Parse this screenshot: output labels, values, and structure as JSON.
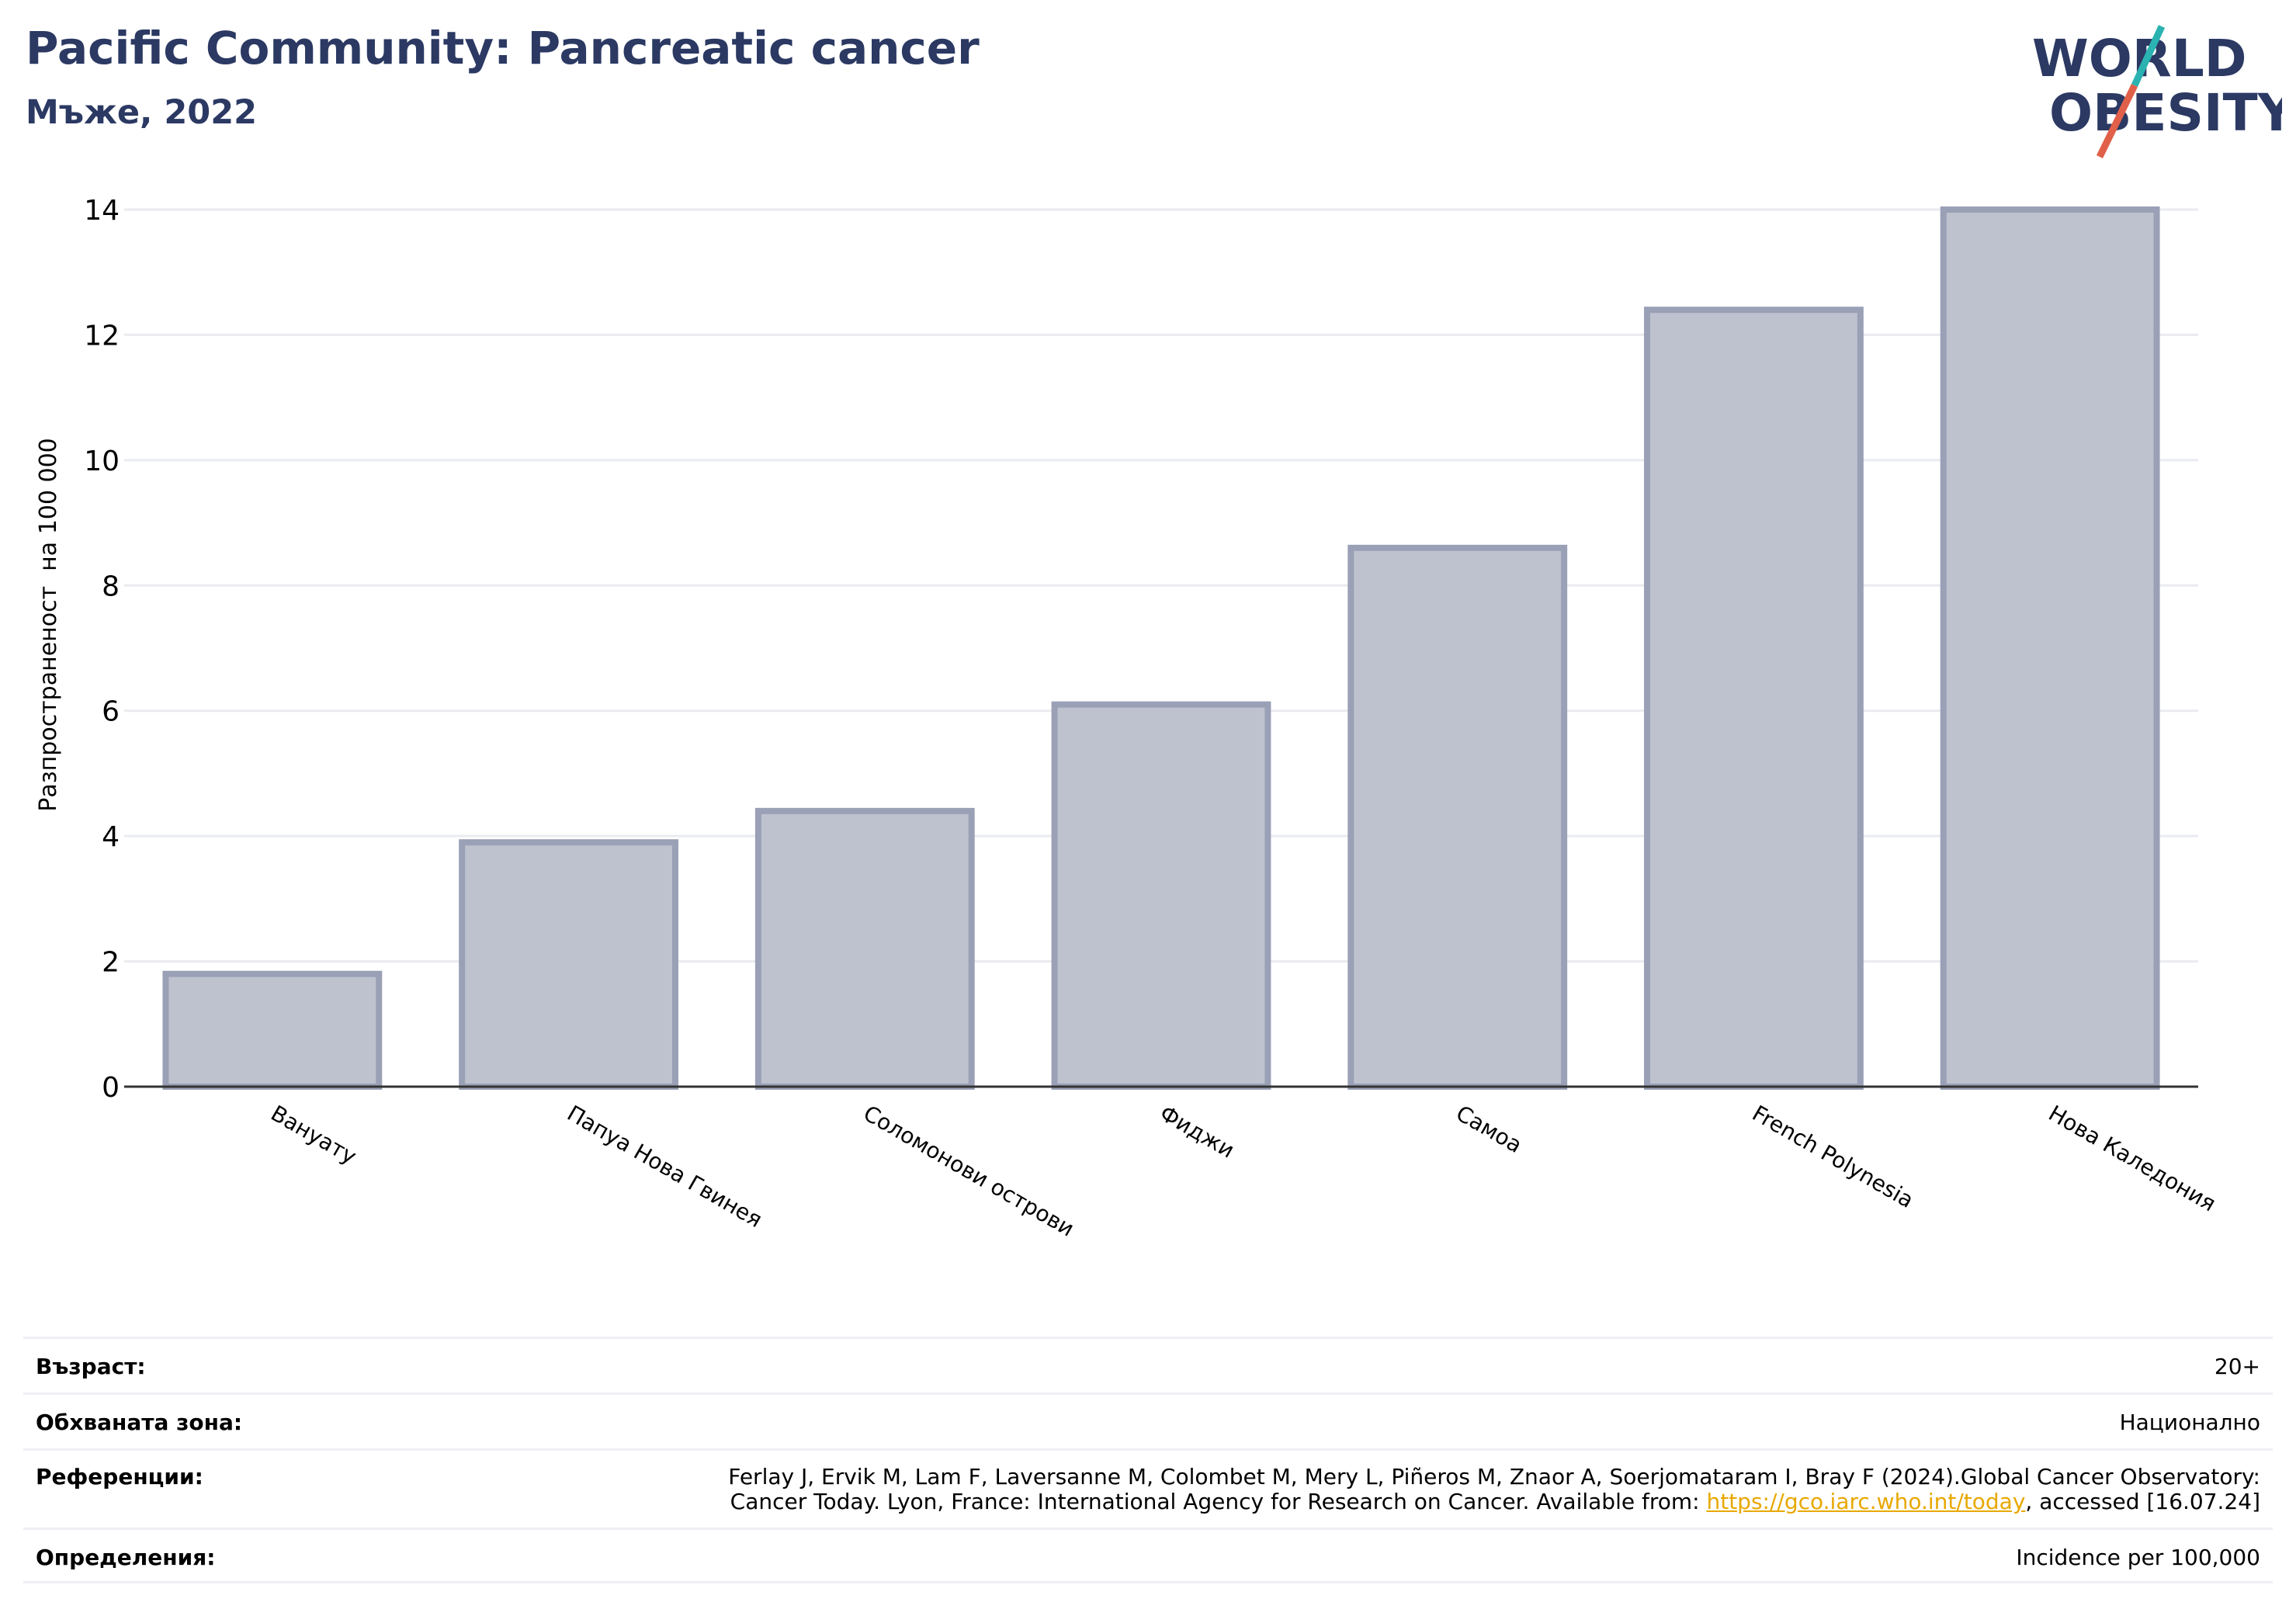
{
  "header": {
    "title": "Pacific Community: Pancreatic cancer",
    "subtitle": "Мъже, 2022"
  },
  "logo": {
    "line1": "WORLD",
    "line2": "OBESITY",
    "accent_teal": "#2bb3b1",
    "accent_red": "#e0604a"
  },
  "colors": {
    "bar_fill": "#bec2ce",
    "bar_stroke": "#9aa0b6",
    "title": "#2b3963",
    "grid": "#e9ebf0"
  },
  "chart_data": {
    "type": "bar",
    "categories": [
      "Вануату",
      "Папуа Нова Гвинея",
      "Соломонови острови",
      "Фиджи",
      "Самоа",
      "French Polynesia",
      "Нова Каледония"
    ],
    "values": [
      1.8,
      3.9,
      4.4,
      6.1,
      8.6,
      12.4,
      14.0
    ],
    "ylabel": "Разпространеност  на 100 000",
    "ylim": [
      0,
      14
    ],
    "yticks": [
      0,
      2,
      4,
      6,
      8,
      10,
      12,
      14
    ],
    "grid": true
  },
  "meta": {
    "age_label": "Възраст:",
    "age_value": "20+",
    "coverage_label": "Обхваната зона:",
    "coverage_value": "Национално",
    "references_label": "Референции:",
    "references_line1": "Ferlay J, Ervik M, Lam F, Laversanne M, Colombet M, Mery L, Piñeros M, Znaor A, Soerjomataram I, Bray F (2024).Global Cancer Observatory:",
    "references_line2_pre": "Cancer Today. Lyon, France: International Agency for Research on Cancer. Available from: ",
    "references_link": "https://gco.iarc.who.int/today",
    "references_line2_post": ", accessed [16.07.24]",
    "definitions_label": "Определения:",
    "definitions_value": "Incidence per 100,000"
  }
}
